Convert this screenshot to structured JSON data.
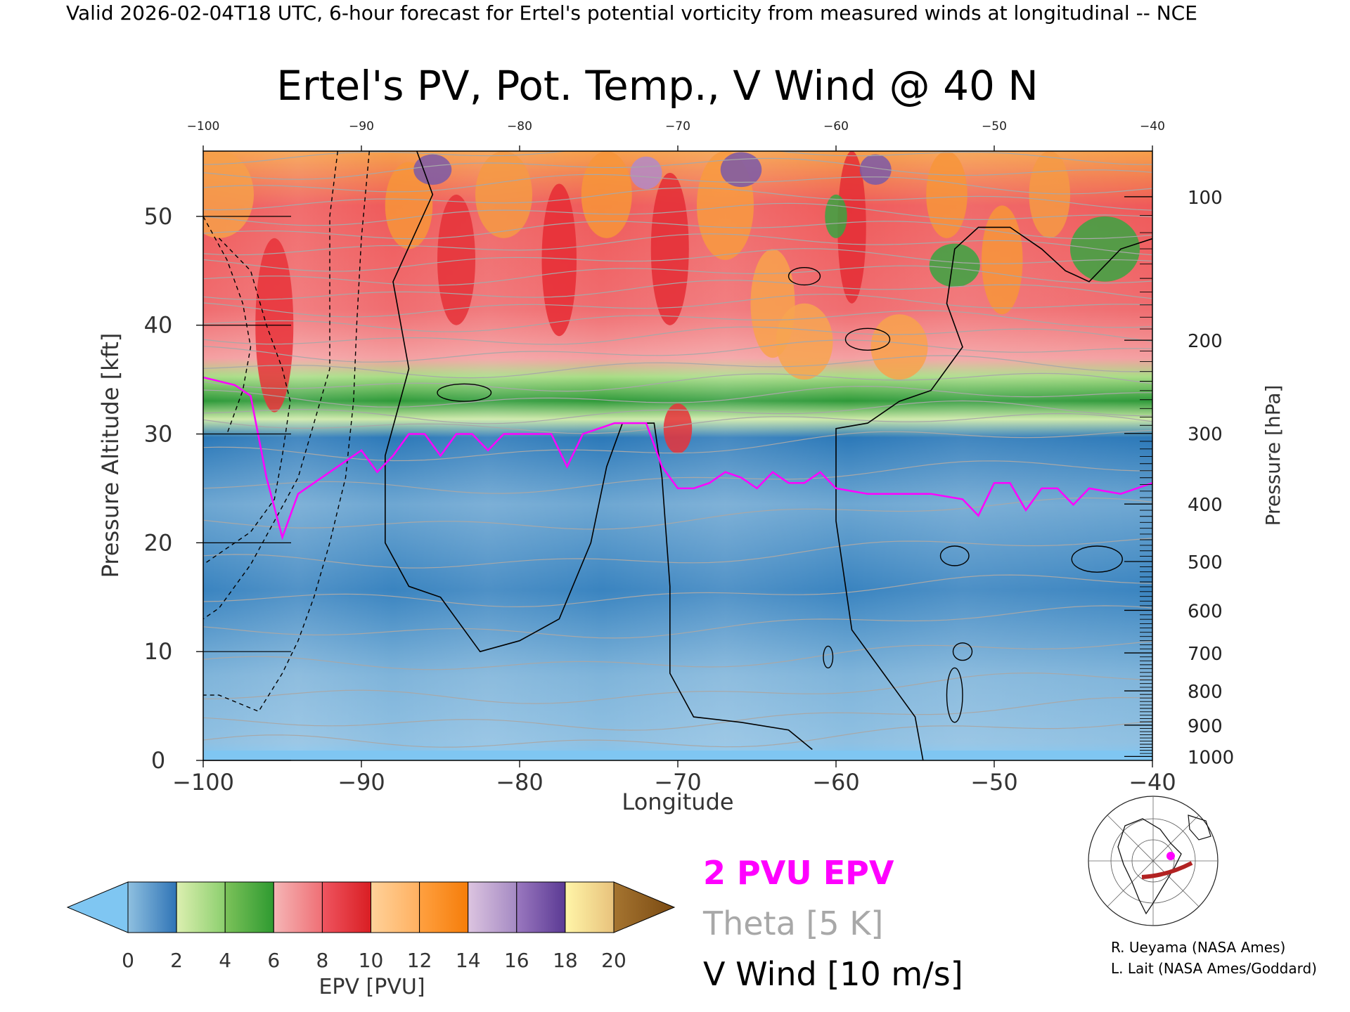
{
  "header": "Valid 2026-02-04T18 UTC, 6-hour forecast for Ertel's potential vorticity from measured winds at longitudinal -- NCE",
  "chart_data": {
    "type": "heatmap",
    "title": "Ertel's PV, Pot. Temp., V Wind @ 40 N",
    "xlabel": "Longitude",
    "ylabel_left": "Pressure Altitude [kft]",
    "ylabel_right": "Pressure [hPa]",
    "xlim": [
      -100,
      -40
    ],
    "ylim_kft": [
      0,
      56
    ],
    "x_ticks": [
      -100,
      -90,
      -80,
      -70,
      -60,
      -50,
      -40
    ],
    "x_tick_labels": [
      "−100",
      "−90",
      "−80",
      "−70",
      "−60",
      "−50",
      "−40"
    ],
    "y_ticks_kft": [
      0,
      10,
      20,
      30,
      40,
      50
    ],
    "pressure_ticks_hpa": [
      100,
      200,
      300,
      400,
      500,
      600,
      700,
      800,
      900,
      1000
    ],
    "pv_colorbar": {
      "label": "EPV [PVU]",
      "ticks": [
        0,
        2,
        4,
        6,
        8,
        10,
        12,
        14,
        16,
        18,
        20
      ],
      "bins": [
        {
          "from": 0,
          "to": 2,
          "colors": [
            "#8fc0e0",
            "#2f74b6"
          ]
        },
        {
          "from": 2,
          "to": 4,
          "colors": [
            "#dcefb0",
            "#8ccf6e"
          ]
        },
        {
          "from": 4,
          "to": 6,
          "colors": [
            "#7cc25a",
            "#2e9a30"
          ]
        },
        {
          "from": 6,
          "to": 8,
          "colors": [
            "#f5b6b6",
            "#ef6f75"
          ]
        },
        {
          "from": 8,
          "to": 10,
          "colors": [
            "#ef5560",
            "#d91e23"
          ]
        },
        {
          "from": 10,
          "to": 12,
          "colors": [
            "#ffd29a",
            "#ffb060"
          ]
        },
        {
          "from": 12,
          "to": 14,
          "colors": [
            "#ffa040",
            "#f57d0a"
          ]
        },
        {
          "from": 14,
          "to": 16,
          "colors": [
            "#dcc4e0",
            "#a58ac3"
          ]
        },
        {
          "from": 16,
          "to": 18,
          "colors": [
            "#9a78bf",
            "#5b3a94"
          ]
        },
        {
          "from": 18,
          "to": 20,
          "colors": [
            "#fff5a8",
            "#e8c27c"
          ]
        }
      ],
      "under_color": "#7fc6f2",
      "over_color": "#7a4a12"
    },
    "pv_2pvu_epv_kft": [
      {
        "lon": -100,
        "kft": 35.2
      },
      {
        "lon": -98,
        "kft": 34.5
      },
      {
        "lon": -97,
        "kft": 33.5
      },
      {
        "lon": -96,
        "kft": 26
      },
      {
        "lon": -95,
        "kft": 20.5
      },
      {
        "lon": -94,
        "kft": 24.5
      },
      {
        "lon": -93,
        "kft": 25.5
      },
      {
        "lon": -92,
        "kft": 26.5
      },
      {
        "lon": -91,
        "kft": 27.5
      },
      {
        "lon": -90,
        "kft": 28.5
      },
      {
        "lon": -89,
        "kft": 26.5
      },
      {
        "lon": -88,
        "kft": 28
      },
      {
        "lon": -87,
        "kft": 30
      },
      {
        "lon": -86,
        "kft": 30
      },
      {
        "lon": -85,
        "kft": 28
      },
      {
        "lon": -84,
        "kft": 30
      },
      {
        "lon": -83,
        "kft": 30
      },
      {
        "lon": -82,
        "kft": 28.5
      },
      {
        "lon": -81,
        "kft": 30
      },
      {
        "lon": -80,
        "kft": 30
      },
      {
        "lon": -79,
        "kft": 30
      },
      {
        "lon": -78,
        "kft": 30
      },
      {
        "lon": -77,
        "kft": 27
      },
      {
        "lon": -76,
        "kft": 30
      },
      {
        "lon": -75,
        "kft": 30.5
      },
      {
        "lon": -74,
        "kft": 31
      },
      {
        "lon": -73,
        "kft": 31
      },
      {
        "lon": -72,
        "kft": 31
      },
      {
        "lon": -71,
        "kft": 27
      },
      {
        "lon": -70,
        "kft": 25
      },
      {
        "lon": -69,
        "kft": 25
      },
      {
        "lon": -68,
        "kft": 25.5
      },
      {
        "lon": -67,
        "kft": 26.5
      },
      {
        "lon": -66,
        "kft": 26
      },
      {
        "lon": -65,
        "kft": 25
      },
      {
        "lon": -64,
        "kft": 26.5
      },
      {
        "lon": -63,
        "kft": 25.5
      },
      {
        "lon": -62,
        "kft": 25.5
      },
      {
        "lon": -61,
        "kft": 26.5
      },
      {
        "lon": -60,
        "kft": 25
      },
      {
        "lon": -58,
        "kft": 24.5
      },
      {
        "lon": -56,
        "kft": 24.5
      },
      {
        "lon": -54,
        "kft": 24.5
      },
      {
        "lon": -52,
        "kft": 24
      },
      {
        "lon": -51,
        "kft": 22.5
      },
      {
        "lon": -50,
        "kft": 25.5
      },
      {
        "lon": -49,
        "kft": 25.5
      },
      {
        "lon": -48,
        "kft": 23
      },
      {
        "lon": -47,
        "kft": 25
      },
      {
        "lon": -46,
        "kft": 25
      },
      {
        "lon": -45,
        "kft": 23.5
      },
      {
        "lon": -44,
        "kft": 25
      },
      {
        "lon": -42,
        "kft": 24.5
      },
      {
        "lon": -40,
        "kft": 25.5
      }
    ],
    "theta_contours_K": [
      280,
      290,
      300,
      310,
      320,
      330,
      340,
      350,
      360,
      370,
      380,
      390,
      400,
      410,
      420
    ],
    "v_wind_contours_ms": [
      -30,
      -20,
      -10,
      0,
      10
    ],
    "legend": {
      "epv_entry": "2 PVU EPV",
      "theta_entry": "Theta [5 K]",
      "wind_entry": "V Wind [10 m/s]",
      "epv_color": "#ff00ff",
      "theta_color": "#a8a8a8",
      "wind_color": "#000000"
    },
    "inset_map": "northern hemisphere polar map with 40N cross-section path",
    "inset_path_color": "#b22222",
    "inset_marker_color": "#ff00ff"
  },
  "credits": [
    "R. Ueyama (NASA Ames)",
    "L. Lait (NASA Ames/Goddard)"
  ]
}
